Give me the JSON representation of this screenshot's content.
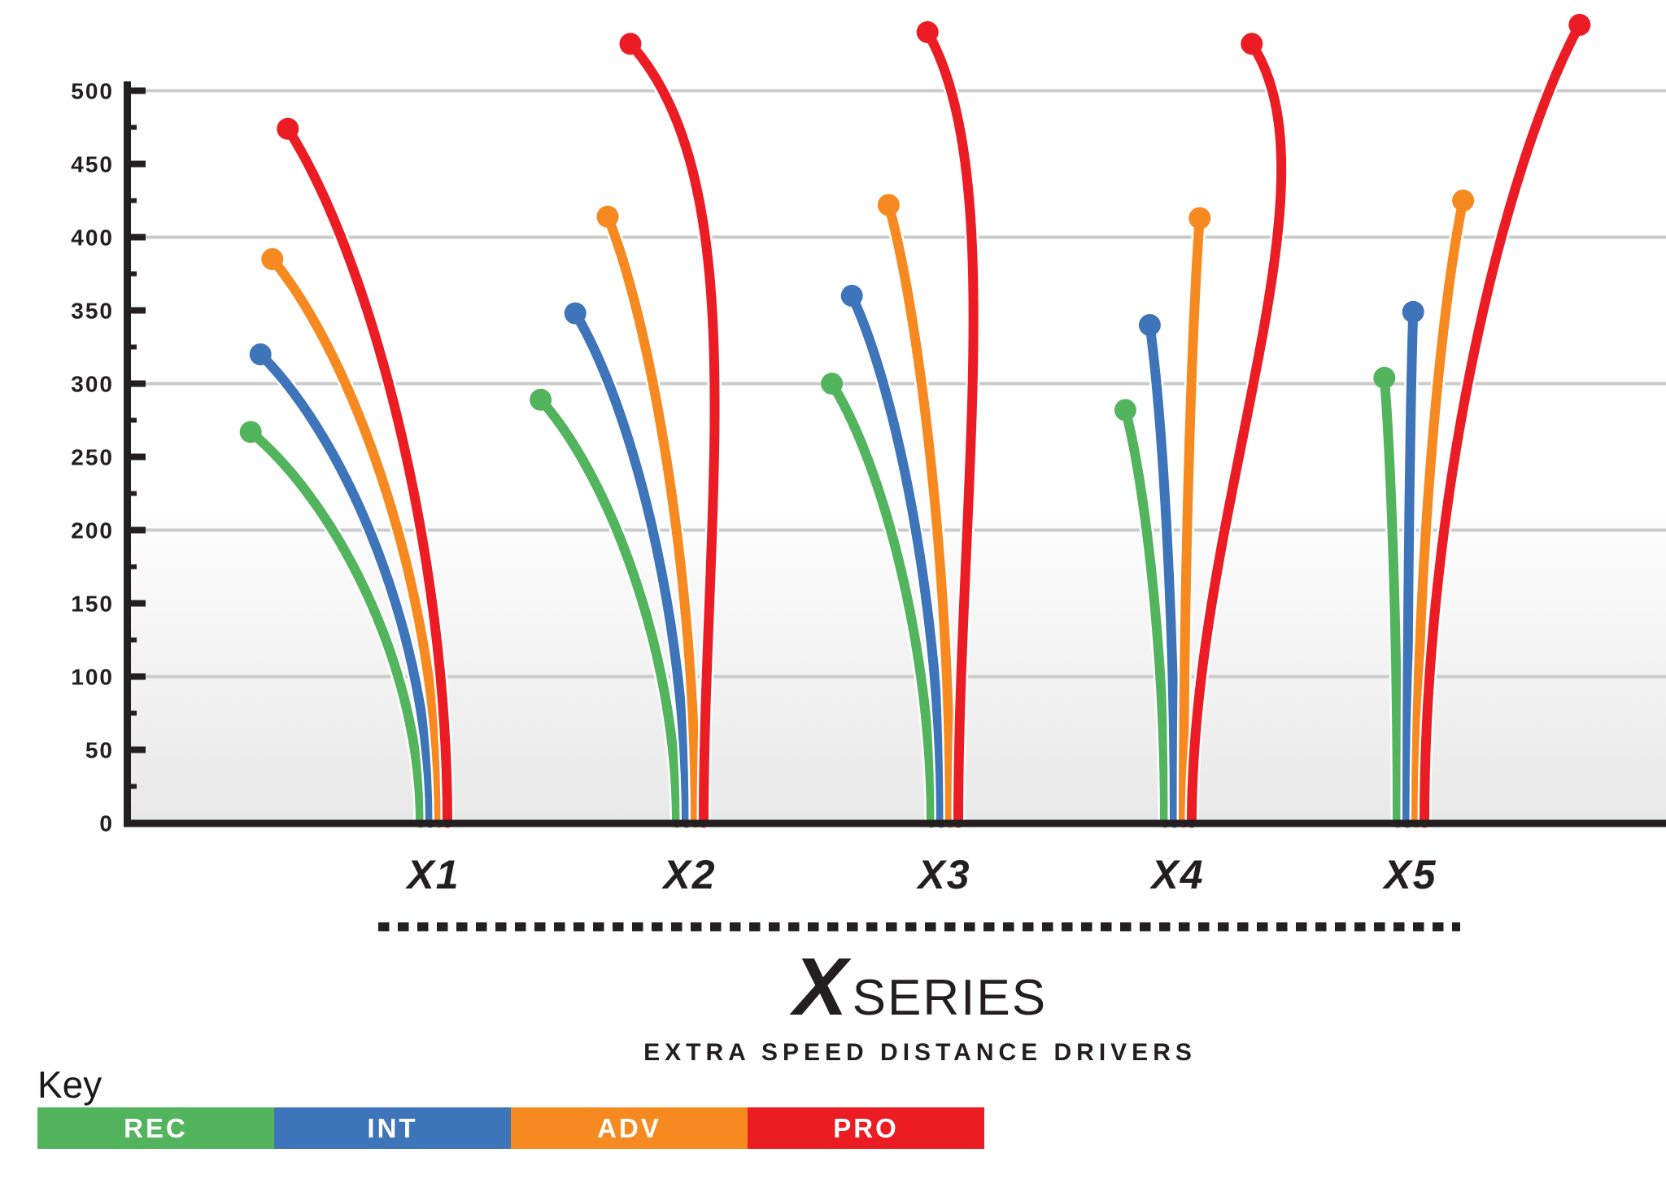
{
  "title": {
    "x_glyph": "X",
    "series_word": "SERIES"
  },
  "subtitle": "EXTRA SPEED DISTANCE DRIVERS",
  "key": {
    "label": "Key"
  },
  "colors": {
    "rec_green": "#53B45E",
    "int_blue": "#3E74B9",
    "adv_orange": "#F6891F",
    "pro_red": "#EB1C24",
    "gridline": "#cbcbcb",
    "axis": "#231f20",
    "plot_fade": "#e8e8e8"
  },
  "chart_data": {
    "type": "line",
    "description": "Disc golf flight paths: distance flown (vertical axis) and lateral finish for each X Series driver by skill level. Dot marks landing point of each flight.",
    "title": "X SERIES",
    "subtitle": "EXTRA SPEED DISTANCE DRIVERS",
    "ylim": [
      0,
      550
    ],
    "grid": "horizontal lines every 100",
    "legend_position": "bottom-left",
    "y_ticks_major": [
      0,
      50,
      100,
      150,
      200,
      250,
      300,
      350,
      400,
      450,
      500
    ],
    "y_minor_tick_step": 25,
    "skills": [
      {
        "id": "REC",
        "label": "REC",
        "color": "#53B45E"
      },
      {
        "id": "INT",
        "label": "INT",
        "color": "#3E74B9"
      },
      {
        "id": "ADV",
        "label": "ADV",
        "color": "#F6891F"
      },
      {
        "id": "PRO",
        "label": "PRO",
        "color": "#EB1C24"
      }
    ],
    "categories": [
      "X1",
      "X2",
      "X3",
      "X4",
      "X5"
    ],
    "discs": [
      {
        "label": "X1",
        "flights": {
          "REC": {
            "distance": 267,
            "finish": -116
          },
          "INT": {
            "distance": 320,
            "finish": -116
          },
          "ADV": {
            "distance": 385,
            "finish": -114
          },
          "PRO": {
            "distance": 474,
            "finish": -109
          }
        }
      },
      {
        "label": "X2",
        "flights": {
          "REC": {
            "distance": 289,
            "finish": -93
          },
          "INT": {
            "distance": 348,
            "finish": -76
          },
          "ADV": {
            "distance": 414,
            "finish": -60
          },
          "PRO": {
            "distance": 532,
            "finish": -50
          }
        }
      },
      {
        "label": "X3",
        "flights": {
          "REC": {
            "distance": 300,
            "finish": -68
          },
          "INT": {
            "distance": 360,
            "finish": -61
          },
          "ADV": {
            "distance": 422,
            "finish": -42
          },
          "PRO": {
            "distance": 540,
            "finish": -21
          }
        }
      },
      {
        "label": "X4",
        "flights": {
          "REC": {
            "distance": 282,
            "finish": -27
          },
          "INT": {
            "distance": 340,
            "finish": -17
          },
          "ADV": {
            "distance": 413,
            "finish": 11
          },
          "PRO": {
            "distance": 532,
            "finish": 41
          }
        }
      },
      {
        "label": "X5",
        "flights": {
          "REC": {
            "distance": 304,
            "finish": -9
          },
          "INT": {
            "distance": 349,
            "finish": 4
          },
          "ADV": {
            "distance": 425,
            "finish": 32
          },
          "PRO": {
            "distance": 545,
            "finish": 106
          }
        }
      }
    ]
  }
}
